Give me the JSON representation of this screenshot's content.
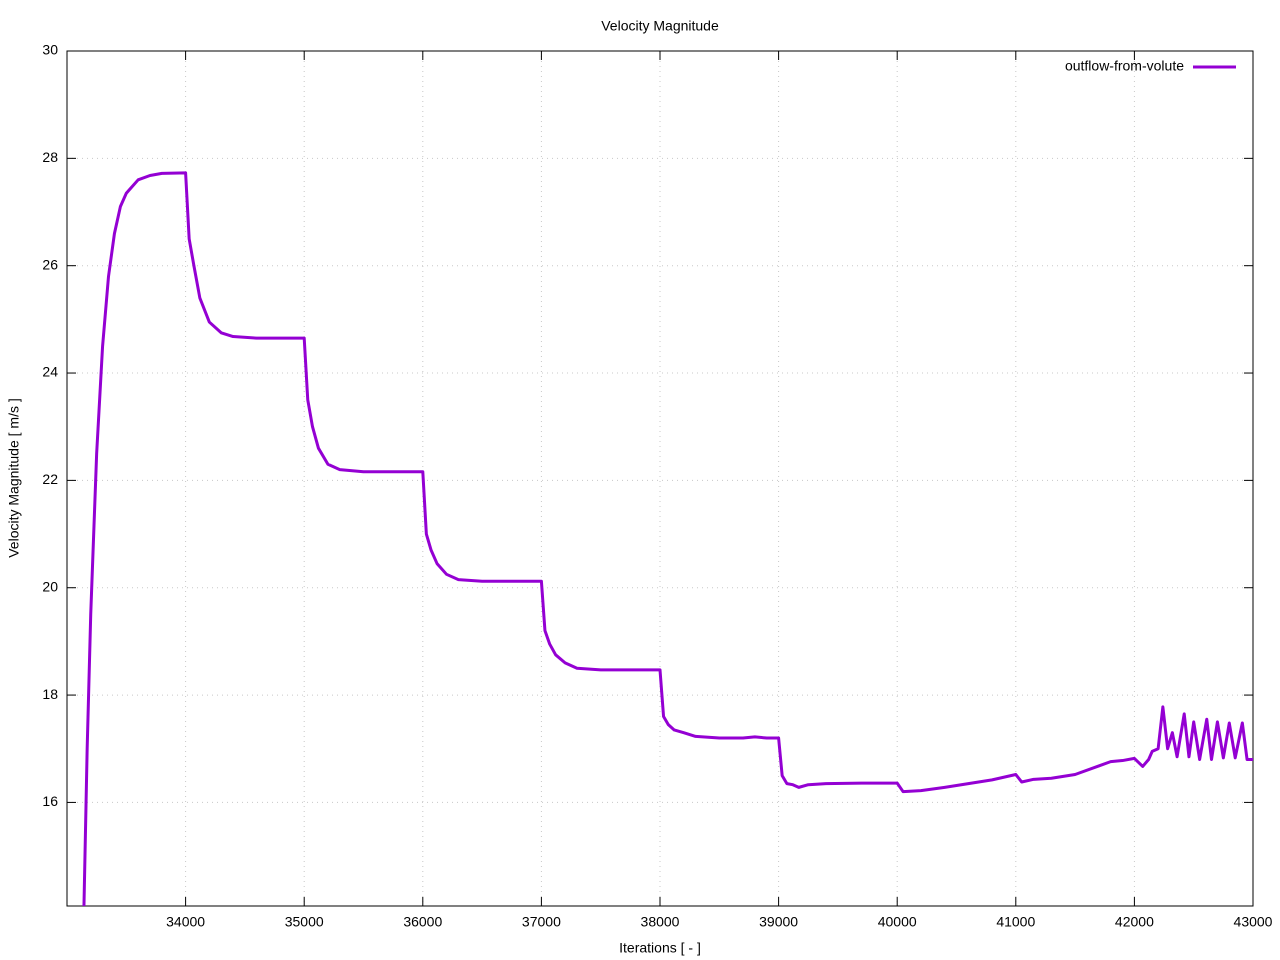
{
  "chart_data": {
    "type": "line",
    "title": "Velocity Magnitude",
    "x_label": "Iterations [ - ]",
    "y_label": "Velocity Magnitude [ m/s ]",
    "xlim": [
      33000,
      43000
    ],
    "ylim": [
      14.07,
      30
    ],
    "xticks": [
      34000,
      35000,
      36000,
      37000,
      38000,
      39000,
      40000,
      41000,
      42000,
      43000
    ],
    "yticks": [
      16,
      18,
      20,
      22,
      24,
      26,
      28,
      30
    ],
    "grid": true,
    "legend": "top-right",
    "x": [
      33143,
      33170,
      33200,
      33250,
      33300,
      33350,
      33400,
      33450,
      33500,
      33600,
      33700,
      33800,
      34000,
      34030,
      34070,
      34120,
      34200,
      34300,
      34400,
      34600,
      35000,
      35030,
      35070,
      35120,
      35200,
      35300,
      35500,
      36000,
      36030,
      36070,
      36120,
      36200,
      36300,
      36500,
      37000,
      37030,
      37070,
      37120,
      37200,
      37300,
      37500,
      38000,
      38030,
      38070,
      38120,
      38200,
      38300,
      38500,
      38700,
      38800,
      38900,
      39000,
      39030,
      39070,
      39120,
      39170,
      39250,
      39400,
      39700,
      40000,
      40050,
      40200,
      40400,
      40600,
      40800,
      41000,
      41050,
      41150,
      41300,
      41500,
      41700,
      41800,
      41900,
      42000,
      42070,
      42120,
      42150,
      42200,
      42240,
      42280,
      42320,
      42360,
      42420,
      42460,
      42500,
      42550,
      42610,
      42650,
      42700,
      42750,
      42800,
      42850,
      42910,
      42950,
      43000
    ],
    "series": [
      {
        "name": "outflow-from-volute",
        "color": "#9400d3",
        "values": [
          14.07,
          17.0,
          19.5,
          22.5,
          24.5,
          25.8,
          26.6,
          27.1,
          27.35,
          27.6,
          27.68,
          27.72,
          27.73,
          26.5,
          26.0,
          25.4,
          24.95,
          24.75,
          24.68,
          24.65,
          24.65,
          23.5,
          23.0,
          22.6,
          22.3,
          22.2,
          22.16,
          22.16,
          21.0,
          20.7,
          20.45,
          20.25,
          20.15,
          20.12,
          20.12,
          19.2,
          18.95,
          18.75,
          18.6,
          18.5,
          18.47,
          18.47,
          17.6,
          17.45,
          17.35,
          17.3,
          17.23,
          17.2,
          17.2,
          17.22,
          17.2,
          17.2,
          16.5,
          16.35,
          16.33,
          16.28,
          16.33,
          16.35,
          16.36,
          16.36,
          16.2,
          16.22,
          16.28,
          16.35,
          16.42,
          16.52,
          16.38,
          16.43,
          16.45,
          16.52,
          16.68,
          16.76,
          16.78,
          16.82,
          16.67,
          16.8,
          16.95,
          17.0,
          17.78,
          17.0,
          17.3,
          16.85,
          17.65,
          16.85,
          17.5,
          16.8,
          17.55,
          16.8,
          17.5,
          16.83,
          17.48,
          16.83,
          17.48,
          16.8,
          16.8
        ]
      }
    ]
  }
}
